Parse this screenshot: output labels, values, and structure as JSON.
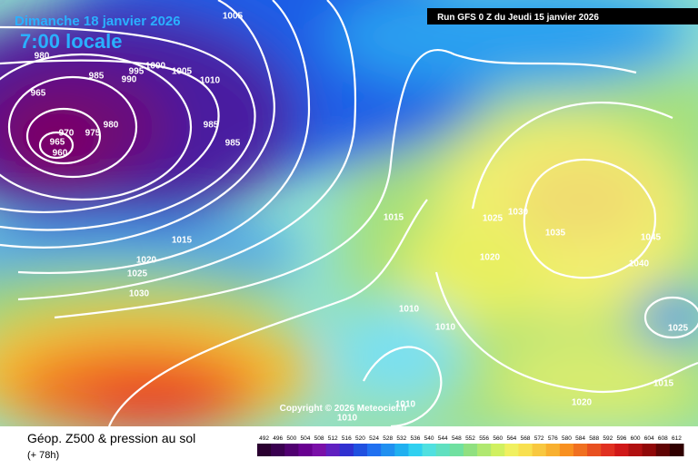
{
  "header": {
    "date": "Dimanche 18 janvier 2026",
    "time": "7:00 locale",
    "run": "Run GFS 0 Z du Jeudi 15 janvier 2026"
  },
  "isobar_labels": [
    "1005",
    "980",
    "985",
    "995",
    "990",
    "1000",
    "1005",
    "1010",
    "965",
    "980",
    "970",
    "975",
    "965",
    "960",
    "985",
    "985",
    "1015",
    "1025",
    "1030",
    "1035",
    "1045",
    "1040",
    "1020",
    "1015",
    "1020",
    "1025",
    "1030",
    "1010",
    "1010",
    "1025",
    "1015",
    "1020",
    "1010",
    "1010"
  ],
  "copyright": "Copyright © 2026 Meteociel.fr",
  "footer": {
    "title": "Géop. Z500 & pression au sol",
    "lead": "(+ 78h)"
  },
  "scale": [
    492,
    496,
    500,
    504,
    508,
    512,
    516,
    520,
    524,
    528,
    532,
    536,
    540,
    544,
    548,
    552,
    556,
    560,
    564,
    568,
    572,
    576,
    580,
    584,
    588,
    592,
    596,
    600,
    604,
    608,
    612
  ]
}
